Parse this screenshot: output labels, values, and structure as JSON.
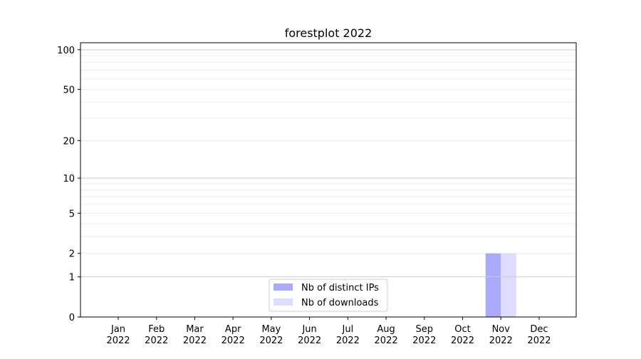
{
  "chart_data": {
    "type": "bar",
    "title": "forestplot 2022",
    "xlabel": "",
    "ylabel": "",
    "y_scale": "log(1+y)",
    "ylim": [
      0,
      113
    ],
    "grid": true,
    "legend_placement": "lower-center",
    "categories": [
      "Jan\n2022",
      "Feb\n2022",
      "Mar\n2022",
      "Apr\n2022",
      "May\n2022",
      "Jun\n2022",
      "Jul\n2022",
      "Aug\n2022",
      "Sep\n2022",
      "Oct\n2022",
      "Nov\n2022",
      "Dec\n2022"
    ],
    "y_ticks": [
      0,
      1,
      2,
      5,
      10,
      20,
      50,
      100
    ],
    "y_tick_labels": [
      "0",
      "1",
      "2",
      "5",
      "10",
      "20",
      "50",
      "100"
    ],
    "series": [
      {
        "name": "Nb of distinct IPs",
        "color": "#aaaaff",
        "values": [
          0,
          0,
          0,
          0,
          0,
          0,
          0,
          0,
          0,
          0,
          2,
          0
        ]
      },
      {
        "name": "Nb of downloads",
        "color": "#ddddff",
        "values": [
          0,
          0,
          0,
          0,
          0,
          0,
          0,
          0,
          0,
          0,
          2,
          0
        ]
      }
    ]
  }
}
